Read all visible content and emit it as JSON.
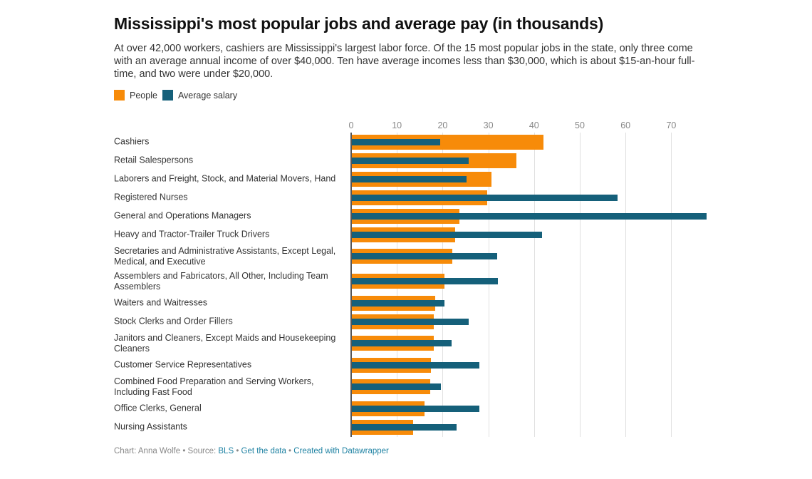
{
  "title": "Mississippi's most popular jobs and average pay (in thousands)",
  "description": "At over 42,000 workers, cashiers are Mississippi's largest labor force. Of the 15 most popular jobs in the state, only three come with an average annual income of over $40,000. Ten have average incomes less than $30,000, which is about $15-an-hour full-time, and two were under $20,000.",
  "colors": {
    "people": "#f78b09",
    "salary": "#15607a"
  },
  "footer": {
    "credit": "Chart: Anna Wolfe • Source: ",
    "source": "BLS",
    "sep1": " • ",
    "get_data": "Get the data",
    "sep2": " • ",
    "created": "Created with Datawrapper"
  },
  "chart_data": {
    "type": "bar",
    "orientation": "horizontal",
    "title": "Mississippi's most popular jobs and average pay (in thousands)",
    "legend": "top-left",
    "grid": true,
    "xlim": [
      0,
      78
    ],
    "xticks": [
      "0",
      "10",
      "20",
      "30",
      "40",
      "50",
      "60",
      "70"
    ],
    "categories": [
      "Cashiers",
      "Retail Salespersons",
      "Laborers and Freight, Stock, and Material Movers, Hand",
      "Registered Nurses",
      "General and Operations Managers",
      "Heavy and Tractor-Trailer Truck Drivers",
      "Secretaries and Administrative Assistants, Except Legal, Medical, and Executive",
      "Assemblers and Fabricators, All Other, Including Team Assemblers",
      "Waiters and Waitresses",
      "Stock Clerks and Order Fillers",
      "Janitors and Cleaners, Except Maids and Housekeeping Cleaners",
      "Customer Service Representatives",
      "Combined Food Preparation and Serving Workers, Including Fast Food",
      "Office Clerks, General",
      "Nursing Assistants"
    ],
    "series": [
      {
        "name": "People",
        "values": [
          42.0,
          36.1,
          30.7,
          29.7,
          23.6,
          22.7,
          22.1,
          20.4,
          18.4,
          18.0,
          18.0,
          17.5,
          17.3,
          16.0,
          13.6
        ]
      },
      {
        "name": "Average salary",
        "values": [
          19.4,
          25.7,
          25.3,
          58.3,
          77.7,
          41.8,
          32.0,
          32.1,
          20.4,
          25.7,
          22.0,
          28.1,
          19.7,
          28.1,
          23.0
        ]
      }
    ]
  }
}
